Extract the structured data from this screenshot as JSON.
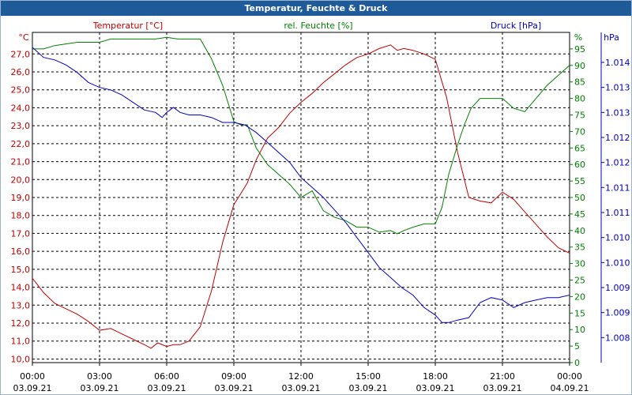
{
  "window": {
    "title": "Temperatur, Feuchte & Druck"
  },
  "chart_data": {
    "type": "line",
    "title": "Temperatur, Feuchte & Druck",
    "colors": {
      "temperature": "#c00000",
      "humidity": "#008000",
      "pressure": "#0000c0",
      "grid": "#000000"
    },
    "x_ticks": [
      {
        "time": "00:00",
        "date": "03.09.21"
      },
      {
        "time": "03:00",
        "date": "03.09.21"
      },
      {
        "time": "06:00",
        "date": "03.09.21"
      },
      {
        "time": "09:00",
        "date": "03.09.21"
      },
      {
        "time": "12:00",
        "date": "03.09.21"
      },
      {
        "time": "15:00",
        "date": "03.09.21"
      },
      {
        "time": "18:00",
        "date": "03.09.21"
      },
      {
        "time": "21:00",
        "date": "03.09.21"
      },
      {
        "time": "00:00",
        "date": "04.09.21"
      }
    ],
    "x_range_hours": [
      0,
      24
    ],
    "axes": {
      "temperature": {
        "unit": "°C",
        "label": "Temperatur [°C]",
        "range": [
          9.8,
          28.2
        ],
        "ticks": [
          "27,0",
          "26,0",
          "25,0",
          "24,0",
          "23,0",
          "22,0",
          "21,0",
          "20,0",
          "19,0",
          "18,0",
          "17,0",
          "16,0",
          "15,0",
          "14,0",
          "13,0",
          "12,0",
          "11,0",
          "10,0"
        ],
        "tick_values": [
          27,
          26,
          25,
          24,
          23,
          22,
          21,
          20,
          19,
          18,
          17,
          16,
          15,
          14,
          13,
          12,
          11,
          10
        ]
      },
      "humidity": {
        "unit": "%",
        "label": "rel. Feuchte [%]",
        "range": [
          0,
          100
        ],
        "ticks": [
          "95",
          "90",
          "85",
          "80",
          "75",
          "70",
          "65",
          "60",
          "55",
          "50",
          "45",
          "40",
          "35",
          "30",
          "25",
          "20",
          "15",
          "10",
          "5",
          "0"
        ],
        "tick_values": [
          95,
          90,
          85,
          80,
          75,
          70,
          65,
          60,
          55,
          50,
          45,
          40,
          35,
          30,
          25,
          20,
          15,
          10,
          5,
          0
        ]
      },
      "pressure": {
        "unit": "hPa",
        "label": "Druck [hPa]",
        "range": [
          1008.0,
          1014.6
        ],
        "ticks": [
          "1.014",
          "1.013",
          "1.013",
          "1.012",
          "1.012",
          "1.011",
          "1.011",
          "1.010",
          "1.010",
          "1.009",
          "1.009",
          "1.008"
        ],
        "tick_values": [
          1014.0,
          1013.5,
          1013.0,
          1012.5,
          1012.0,
          1011.5,
          1011.0,
          1010.5,
          1010.0,
          1009.5,
          1009.0,
          1008.5
        ]
      }
    },
    "series": [
      {
        "name": "Temperatur",
        "axis": "temperature",
        "x": [
          0,
          0.5,
          1,
          1.5,
          2,
          2.5,
          3,
          3.5,
          4,
          4.5,
          5,
          5.3,
          5.6,
          6,
          6.3,
          6.6,
          7,
          7.5,
          8,
          8.5,
          9,
          9.3,
          9.6,
          10,
          10.5,
          11,
          11.5,
          12,
          12.5,
          13,
          13.5,
          14,
          14.5,
          15,
          15.5,
          16,
          16.3,
          16.6,
          17,
          17.5,
          18,
          18.5,
          19,
          19.5,
          20,
          20.5,
          21,
          21.5,
          22,
          22.5,
          23,
          23.5,
          24
        ],
        "values": [
          14.5,
          13.7,
          13.1,
          12.8,
          12.5,
          12.1,
          11.6,
          11.7,
          11.4,
          11.1,
          10.8,
          10.6,
          10.9,
          10.7,
          10.8,
          10.8,
          11.0,
          11.8,
          13.8,
          16.5,
          18.6,
          19.2,
          19.8,
          21.1,
          22.3,
          22.9,
          23.7,
          24.3,
          24.8,
          25.4,
          25.9,
          26.4,
          26.8,
          27.0,
          27.3,
          27.5,
          27.2,
          27.3,
          27.2,
          27.0,
          26.7,
          24.6,
          21.5,
          19.0,
          18.8,
          18.7,
          19.3,
          18.9,
          18.2,
          17.5,
          16.8,
          16.2,
          15.9
        ]
      },
      {
        "name": "rel. Feuchte",
        "axis": "humidity",
        "x": [
          0,
          0.5,
          1,
          1.5,
          2,
          2.5,
          3,
          3.5,
          4,
          4.5,
          5,
          5.5,
          6,
          6.5,
          7,
          7.5,
          8,
          8.5,
          9,
          9.3,
          9.6,
          10,
          10.5,
          11,
          11.5,
          12,
          12.5,
          13,
          13.5,
          14,
          14.5,
          15,
          15.5,
          16,
          16.3,
          16.6,
          17,
          17.5,
          18,
          18.3,
          18.6,
          19,
          19.3,
          19.6,
          20,
          20.5,
          21,
          21.5,
          22,
          22.5,
          23,
          23.5,
          24
        ],
        "values": [
          95,
          95,
          96,
          96.5,
          97,
          97,
          97,
          98,
          98,
          98,
          98,
          98,
          98.5,
          98,
          98,
          98,
          92,
          84,
          73,
          72,
          72,
          65,
          60,
          57,
          54,
          50,
          52,
          46,
          44,
          43,
          41,
          41,
          39.5,
          40,
          39,
          40,
          41,
          42,
          42,
          47,
          57,
          66,
          72,
          77,
          80,
          80,
          80,
          77,
          76,
          80,
          84,
          87,
          90
        ]
      },
      {
        "name": "Druck",
        "axis": "pressure",
        "x": [
          0,
          0.5,
          1,
          1.5,
          2,
          2.5,
          3,
          3.5,
          4,
          4.5,
          5,
          5.5,
          5.8,
          6,
          6.3,
          6.6,
          7,
          7.5,
          8,
          8.5,
          9,
          9.5,
          10,
          10.5,
          11,
          11.5,
          12,
          12.5,
          13,
          13.5,
          14,
          14.5,
          15,
          15.5,
          16,
          16.5,
          17,
          17.5,
          18,
          18.3,
          18.6,
          19,
          19.5,
          20,
          20.5,
          21,
          21.5,
          22,
          22.5,
          23,
          23.5,
          24
        ],
        "values": [
          1014.3,
          1014.1,
          1014.05,
          1013.95,
          1013.8,
          1013.6,
          1013.5,
          1013.45,
          1013.35,
          1013.2,
          1013.05,
          1013.0,
          1012.9,
          1013.0,
          1013.1,
          1013.0,
          1012.95,
          1012.95,
          1012.9,
          1012.8,
          1012.8,
          1012.75,
          1012.6,
          1012.4,
          1012.2,
          1012.0,
          1011.7,
          1011.5,
          1011.3,
          1011.05,
          1010.8,
          1010.5,
          1010.2,
          1009.9,
          1009.7,
          1009.5,
          1009.35,
          1009.1,
          1008.95,
          1008.8,
          1008.8,
          1008.85,
          1008.9,
          1009.2,
          1009.3,
          1009.25,
          1009.1,
          1009.2,
          1009.25,
          1009.3,
          1009.3,
          1009.35
        ]
      }
    ]
  }
}
